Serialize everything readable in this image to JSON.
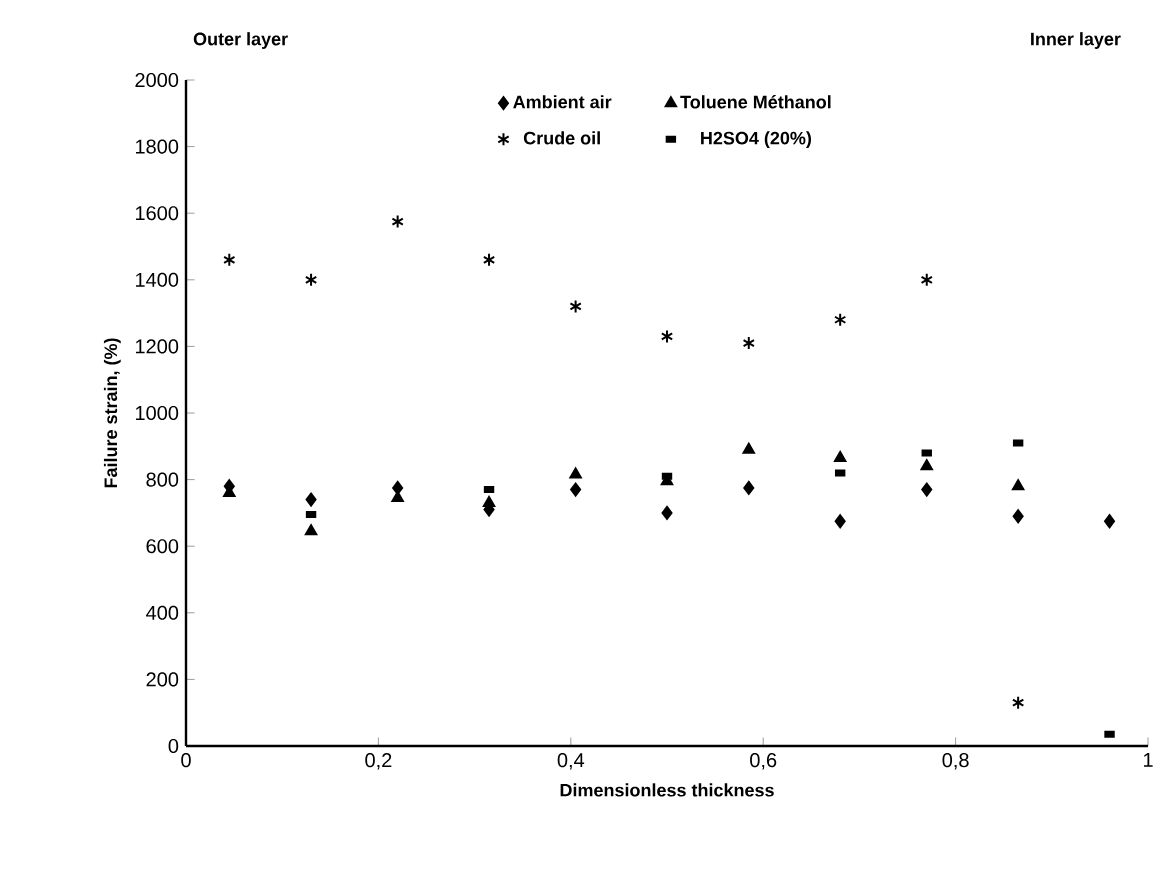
{
  "chart_data": {
    "type": "scatter",
    "xlabel": "Dimensionless thickness",
    "ylabel": "Failure strain, (%)",
    "annotations": [
      "Outer layer",
      "Inner layer"
    ],
    "x": [
      0.045,
      0.13,
      0.22,
      0.315,
      0.405,
      0.5,
      0.585,
      0.68,
      0.77,
      0.865,
      0.96
    ],
    "series": [
      {
        "name": "Ambient air",
        "color": "#000000",
        "marker": "diamond",
        "values": [
          780,
          740,
          775,
          710,
          770,
          700,
          775,
          675,
          770,
          690,
          675
        ]
      },
      {
        "name": "Toluene Méthanol",
        "color": "#000000",
        "marker": "triangle",
        "values": [
          760,
          645,
          745,
          730,
          815,
          795,
          890,
          865,
          840,
          780,
          null
        ]
      },
      {
        "name": "Crude oil",
        "color": "#000000",
        "marker": "cross",
        "values": [
          1460,
          1400,
          1575,
          1460,
          1320,
          1230,
          1210,
          1280,
          1400,
          130,
          null
        ]
      },
      {
        "name": "H2SO4 (20%)",
        "color": "#000000",
        "marker": "square",
        "values": [
          null,
          695,
          null,
          770,
          null,
          810,
          null,
          820,
          880,
          910,
          35
        ]
      }
    ],
    "xlim": [
      0,
      1
    ],
    "ylim": [
      0,
      2000
    ],
    "xticks": [
      0,
      {
        "value": 0.2,
        "label": "0,2"
      },
      {
        "value": 0.4,
        "label": "0,4"
      },
      {
        "value": 0.6,
        "label": "0,6"
      },
      {
        "value": 0.8,
        "label": "0,8"
      },
      1
    ],
    "yticks": [
      0,
      200,
      400,
      600,
      800,
      1000,
      1200,
      1400,
      1600,
      1800,
      2000
    ],
    "legend": "top",
    "grid": false
  }
}
